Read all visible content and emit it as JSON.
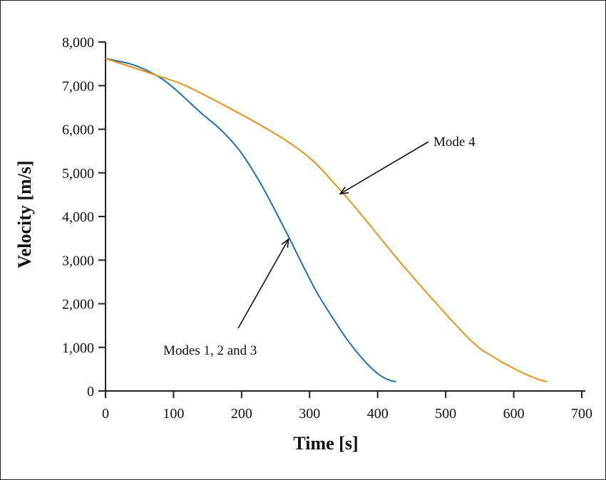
{
  "chart_data": {
    "type": "line",
    "xlabel": "Time [s]",
    "ylabel": "Velocity [m/s]",
    "xlim": [
      0,
      700
    ],
    "ylim": [
      0,
      8000
    ],
    "x_ticks": [
      "0",
      "100",
      "200",
      "300",
      "400",
      "500",
      "600",
      "700"
    ],
    "y_ticks": [
      "0",
      "1,000",
      "2,000",
      "3,000",
      "4,000",
      "5,000",
      "6,000",
      "7,000",
      "8,000"
    ],
    "grid": false,
    "series": [
      {
        "name": "Modes 1, 2 and 3",
        "color": "#1f6fb2",
        "x": [
          0,
          40,
          74,
          100,
          140,
          170,
          199,
          230,
          267,
          290,
          311,
          335,
          356,
          380,
          400,
          415,
          427
        ],
        "y": [
          7620,
          7480,
          7240,
          6950,
          6380,
          5980,
          5470,
          4700,
          3600,
          2880,
          2250,
          1650,
          1160,
          700,
          400,
          260,
          210
        ]
      },
      {
        "name": "Mode 4",
        "color": "#e8921e",
        "x": [
          0,
          74,
          136,
          276,
          347,
          442,
          533,
          570,
          601,
          630,
          649
        ],
        "y": [
          7620,
          7240,
          6860,
          5630,
          4570,
          2790,
          1220,
          780,
          510,
          300,
          210
        ]
      }
    ],
    "annotations": [
      {
        "text": "Mode 4",
        "arrow_to": [
          345,
          4520
        ]
      },
      {
        "text": "Modes 1, 2 and 3",
        "arrow_to": [
          269,
          3480
        ]
      }
    ]
  }
}
